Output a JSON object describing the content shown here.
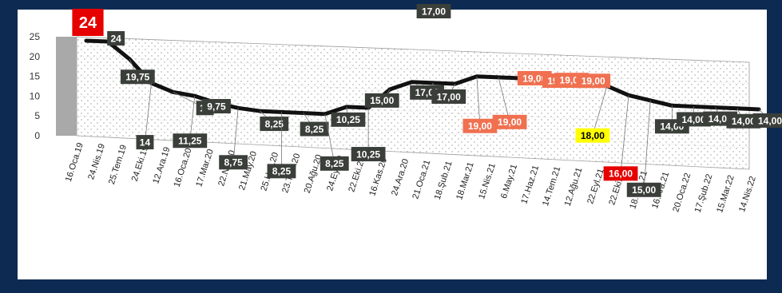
{
  "chart_data": {
    "type": "line",
    "title": "",
    "xlabel": "",
    "ylabel": "",
    "ylim": [
      0,
      25
    ],
    "yticks": [
      "0",
      "5",
      "10",
      "15",
      "20",
      "25"
    ],
    "grid": true,
    "legend": "none",
    "colors": {
      "line": "#111111",
      "label_bg": "#3a3f3a",
      "label_text": "#ffffff",
      "highlight_red": "#e60000",
      "highlight_orange": "#f07050",
      "highlight_yellow": "#ffff00",
      "frame": "#0d2a52"
    },
    "x": [
      "16.Oca.19",
      "24.Nis.19",
      "25.Tem.19",
      "24.Eki.19",
      "12.Ara.19",
      "16.Oca.20",
      "17.Mar.20",
      "22.Nis.20",
      "21.May.20",
      "25.Haz.20",
      "23.Tem.20",
      "20.Ağu.20",
      "24.Eyl.20",
      "22.Eki.20",
      "16.Kas.20",
      "24.Ara.20",
      "21.Oca.21",
      "18.Şub.21",
      "18.Mar.21",
      "15.Nis.21",
      "6.May.21",
      "17.Haz.21",
      "14.Tem.21",
      "12.Ağu.21",
      "22.Eyl.21",
      "22.Eki.21",
      "18.Kas.21",
      "16.Ara.21",
      "20.Oca.22",
      "17.Şub.22",
      "15.Mar.22",
      "14.Nis.22"
    ],
    "series": [
      {
        "values": [
          24,
          24,
          19.75,
          14,
          12,
          11.25,
          9.75,
          8.75,
          8.25,
          8.25,
          8.25,
          8.25,
          10.25,
          10.25,
          15,
          17,
          17,
          17,
          19,
          19,
          19,
          19,
          19,
          19,
          18,
          16,
          15,
          14,
          14,
          14,
          14,
          14
        ]
      }
    ],
    "data_labels": [
      "24",
      "24",
      "19,75",
      "14",
      "12",
      "11,25",
      "9,75",
      "8,75",
      "8,25",
      "8,25",
      "8,25",
      "8,25",
      "10,25",
      "10,25",
      "15,00",
      "17,00",
      "17,00",
      "17,00",
      "19,00",
      "19,00",
      "19,00",
      "19,00",
      "19,00",
      "19,00",
      "18,00",
      "16,00",
      "15,00",
      "14,00",
      "14,00",
      "14,00",
      "14,00",
      "14,00"
    ]
  }
}
